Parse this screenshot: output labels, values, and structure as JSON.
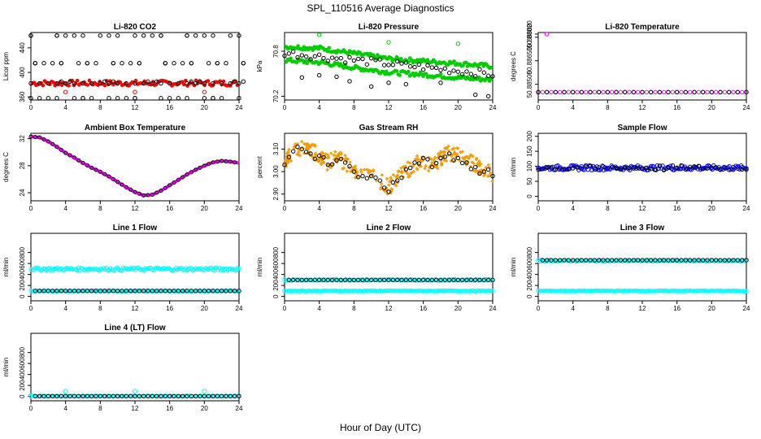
{
  "figure": {
    "main_title": "SPL_110516  Average Diagnostics",
    "xlabel": "Hour of Day (UTC)"
  },
  "colors": {
    "co2": "#ff0000",
    "pressure": "#00cc00",
    "temperature": "#ff00ff",
    "box_temp": "#ff00ff",
    "rh": "#ffa500",
    "sample_flow": "#0000ff",
    "line_flow": "#00ffff",
    "average_marker": "#000000"
  },
  "chart_data": [
    {
      "id": "co2",
      "type": "scatter",
      "title": "Li-820 CO2",
      "ylabel": "Licor ppm",
      "xlim": [
        0,
        24
      ],
      "ylim": [
        355,
        465
      ],
      "xticks": [
        "0",
        "4",
        "8",
        "12",
        "16",
        "20",
        "24"
      ],
      "yticks": [
        "360",
        "400",
        "440"
      ],
      "series": [
        {
          "name": "raw",
          "color": "red",
          "band_low": [
            378,
            378,
            379,
            379,
            378,
            378
          ],
          "band_high": [
            385,
            386,
            386,
            387,
            386,
            385
          ],
          "outliers": [
            [
              4,
              368
            ],
            [
              12,
              368
            ],
            [
              20,
              368
            ]
          ]
        },
        {
          "name": "hourly average",
          "color": "black",
          "x": [
            0,
            1,
            2,
            3,
            4,
            5,
            6,
            7,
            8,
            9,
            10,
            11,
            12,
            13,
            14,
            15,
            16,
            17,
            18,
            19,
            20,
            21,
            22,
            23,
            24
          ],
          "levels": [
            [
              0.5,
              358
            ],
            [
              1.5,
              385
            ],
            [
              2.5,
              460
            ],
            [
              5,
              415
            ],
            [
              7,
              358
            ],
            [
              9,
              415
            ],
            [
              11,
              460
            ],
            [
              13,
              385
            ],
            [
              17,
              358
            ],
            [
              21,
              415
            ],
            [
              23,
              460
            ]
          ]
        }
      ]
    },
    {
      "id": "pressure",
      "type": "scatter",
      "title": "Li-820 Pressure",
      "ylabel": "kPa",
      "xlim": [
        0,
        24
      ],
      "ylim": [
        70.15,
        71.05
      ],
      "xticks": [
        "0",
        "4",
        "8",
        "12",
        "16",
        "20",
        "24"
      ],
      "yticks": [
        "70.2",
        "70.8"
      ],
      "series": [
        {
          "name": "raw upper",
          "color": "green",
          "x": [
            0,
            4,
            8,
            12,
            16,
            20,
            24
          ],
          "y": [
            70.86,
            70.84,
            70.77,
            70.7,
            70.67,
            70.64,
            70.6
          ]
        },
        {
          "name": "raw lower",
          "color": "green",
          "x": [
            0,
            4,
            8,
            12,
            16,
            20,
            24
          ],
          "y": [
            70.68,
            70.65,
            70.58,
            70.52,
            70.49,
            70.45,
            70.42
          ]
        },
        {
          "name": "hourly average",
          "color": "black",
          "x": [
            0,
            2,
            4,
            6,
            8,
            10,
            12,
            14,
            16,
            18,
            20,
            22,
            24
          ],
          "y": [
            70.72,
            70.78,
            70.82,
            70.7,
            70.55,
            70.62,
            70.6,
            70.55,
            70.58,
            70.52,
            70.55,
            70.5,
            70.46
          ]
        }
      ]
    },
    {
      "id": "li820_temp",
      "type": "scatter",
      "title": "Li-820 Temperature",
      "ylabel": "degrees C",
      "xlim": [
        0,
        24
      ],
      "ylim": [
        50.884,
        50.8883
      ],
      "xticks": [
        "0",
        "4",
        "8",
        "12",
        "16",
        "20",
        "24"
      ],
      "yticks": [
        "50.88500",
        "50.88650",
        "50.88800",
        "50.88820"
      ],
      "series": [
        {
          "name": "raw",
          "color": "magenta",
          "x": [
            0,
            24
          ],
          "y": [
            50.8845,
            50.8845
          ],
          "outliers": [
            [
              1,
              50.8882
            ]
          ]
        },
        {
          "name": "hourly average",
          "color": "black",
          "x": [
            0,
            1,
            2,
            3,
            4,
            5,
            6,
            7,
            8,
            9,
            10,
            11,
            12,
            13,
            14,
            15,
            16,
            17,
            18,
            19,
            20,
            21,
            22,
            23,
            24
          ],
          "y": "constant 50.8845"
        }
      ]
    },
    {
      "id": "box_temp",
      "type": "line",
      "title": "Ambient Box Temperature",
      "ylabel": "degrees C",
      "xlim": [
        0,
        24
      ],
      "ylim": [
        22.8,
        32.8
      ],
      "xticks": [
        "0",
        "4",
        "8",
        "12",
        "16",
        "20",
        "24"
      ],
      "yticks": [
        "24",
        "28",
        "32"
      ],
      "series": [
        {
          "name": "raw",
          "color": "magenta",
          "x": [
            0,
            1,
            2,
            3,
            4,
            5,
            6,
            7,
            8,
            9,
            10,
            11,
            12,
            13,
            14,
            15,
            16,
            17,
            18,
            19,
            20,
            21,
            22,
            23,
            24
          ],
          "y": [
            32.3,
            32.2,
            31.6,
            30.8,
            29.9,
            29.2,
            28.4,
            27.7,
            27.1,
            26.4,
            25.6,
            24.8,
            24.1,
            23.6,
            23.7,
            24.3,
            25.1,
            25.9,
            26.7,
            27.4,
            28.0,
            28.5,
            28.7,
            28.6,
            28.4
          ]
        }
      ]
    },
    {
      "id": "rh",
      "type": "scatter",
      "title": "Gas Stream RH",
      "ylabel": "percent",
      "xlim": [
        0,
        24
      ],
      "ylim": [
        2.87,
        3.17
      ],
      "xticks": [
        "0",
        "4",
        "8",
        "12",
        "16",
        "20",
        "24"
      ],
      "yticks": [
        "2.90",
        "3.00",
        "3.10"
      ],
      "series": [
        {
          "name": "raw",
          "color": "orange",
          "x": [
            0,
            1,
            2,
            3,
            4,
            5,
            6,
            7,
            8,
            9,
            10,
            11,
            12,
            13,
            14,
            15,
            16,
            17,
            18,
            19,
            20,
            21,
            22,
            23,
            24
          ],
          "y": [
            3.05,
            3.09,
            3.11,
            3.1,
            3.07,
            3.04,
            3.06,
            3.04,
            3.0,
            2.99,
            2.98,
            2.96,
            2.93,
            2.97,
            3.0,
            3.03,
            3.05,
            3.02,
            3.06,
            3.08,
            3.07,
            3.05,
            3.03,
            3.01,
            2.99
          ]
        },
        {
          "name": "hourly average",
          "color": "black",
          "x": [
            0,
            1,
            2,
            3,
            4,
            5,
            6,
            7,
            8,
            9,
            10,
            11,
            12,
            13,
            14,
            15,
            16,
            17,
            18,
            19,
            20,
            21,
            22,
            23,
            24
          ],
          "y": [
            3.03,
            3.09,
            3.1,
            3.08,
            3.07,
            3.03,
            3.05,
            3.04,
            3.0,
            2.98,
            2.98,
            2.96,
            2.91,
            2.96,
            3.01,
            3.04,
            3.06,
            3.02,
            3.06,
            3.08,
            3.06,
            3.04,
            3.02,
            3.0,
            2.98
          ]
        }
      ]
    },
    {
      "id": "sample_flow",
      "type": "scatter",
      "title": "Sample Flow",
      "ylabel": "ml/min",
      "xlim": [
        0,
        24
      ],
      "ylim": [
        -15,
        210
      ],
      "xticks": [
        "0",
        "4",
        "8",
        "12",
        "16",
        "20",
        "24"
      ],
      "yticks": [
        "0",
        "50",
        "100",
        "150",
        "200"
      ],
      "series": [
        {
          "name": "raw",
          "color": "blue",
          "x": [
            0,
            24
          ],
          "y": [
            95,
            95
          ],
          "spread": 8
        },
        {
          "name": "hourly average",
          "color": "black",
          "x": [
            0,
            1,
            2,
            3,
            4,
            5,
            6,
            7,
            8,
            9,
            10,
            11,
            12,
            13,
            14,
            15,
            16,
            17,
            18,
            19,
            20,
            21,
            22,
            23,
            24
          ],
          "y": "approx 95"
        }
      ]
    },
    {
      "id": "line1_flow",
      "type": "scatter",
      "title": "Line 1 Flow",
      "ylabel": "ml/min",
      "xlim": [
        0,
        24
      ],
      "ylim": [
        -80,
        1150
      ],
      "xticks": [
        "0",
        "4",
        "8",
        "12",
        "16",
        "20",
        "24"
      ],
      "yticks": [
        "0",
        "200",
        "400",
        "600",
        "800"
      ],
      "series": [
        {
          "name": "raw high",
          "color": "cyan",
          "x": [
            0,
            24
          ],
          "y": [
            500,
            500
          ],
          "spread": 25
        },
        {
          "name": "raw low",
          "color": "cyan",
          "x": [
            0,
            24
          ],
          "y": [
            100,
            100
          ],
          "spread": 6
        },
        {
          "name": "hourly average",
          "color": "black",
          "x": [
            0,
            1,
            2,
            3,
            4,
            5,
            6,
            7,
            8,
            9,
            10,
            11,
            12,
            13,
            14,
            15,
            16,
            17,
            18,
            19,
            20,
            21,
            22,
            23,
            24
          ],
          "y": "constant 100"
        }
      ]
    },
    {
      "id": "line2_flow",
      "type": "scatter",
      "title": "Line 2 Flow",
      "ylabel": "ml/min",
      "xlim": [
        0,
        24
      ],
      "ylim": [
        -80,
        1150
      ],
      "xticks": [
        "0",
        "4",
        "8",
        "12",
        "16",
        "20",
        "24"
      ],
      "yticks": [
        "0",
        "200",
        "400",
        "600",
        "800"
      ],
      "series": [
        {
          "name": "raw high",
          "color": "cyan",
          "x": [
            0,
            24
          ],
          "y": [
            300,
            300
          ],
          "spread": 12
        },
        {
          "name": "raw low",
          "color": "cyan",
          "x": [
            0,
            24
          ],
          "y": [
            100,
            100
          ],
          "spread": 6
        },
        {
          "name": "hourly average",
          "color": "black",
          "x": [
            0,
            1,
            2,
            3,
            4,
            5,
            6,
            7,
            8,
            9,
            10,
            11,
            12,
            13,
            14,
            15,
            16,
            17,
            18,
            19,
            20,
            21,
            22,
            23,
            24
          ],
          "y": "constant 300"
        }
      ]
    },
    {
      "id": "line3_flow",
      "type": "scatter",
      "title": "Line 3 Flow",
      "ylabel": "ml/min",
      "xlim": [
        0,
        24
      ],
      "ylim": [
        -80,
        1150
      ],
      "xticks": [
        "0",
        "4",
        "8",
        "12",
        "16",
        "20",
        "24"
      ],
      "yticks": [
        "0",
        "200",
        "400",
        "600",
        "800"
      ],
      "series": [
        {
          "name": "raw high",
          "color": "cyan",
          "x": [
            0,
            24
          ],
          "y": [
            650,
            650
          ],
          "spread": 15
        },
        {
          "name": "raw low",
          "color": "cyan",
          "x": [
            0,
            24
          ],
          "y": [
            100,
            100
          ],
          "spread": 6
        },
        {
          "name": "hourly average",
          "color": "black",
          "x": [
            0,
            1,
            2,
            3,
            4,
            5,
            6,
            7,
            8,
            9,
            10,
            11,
            12,
            13,
            14,
            15,
            16,
            17,
            18,
            19,
            20,
            21,
            22,
            23,
            24
          ],
          "y": "constant 660"
        }
      ]
    },
    {
      "id": "line4_flow",
      "type": "scatter",
      "title": "Line 4 (LT) Flow",
      "ylabel": "ml/min",
      "xlim": [
        0,
        24
      ],
      "ylim": [
        -80,
        1150
      ],
      "xticks": [
        "0",
        "4",
        "8",
        "12",
        "16",
        "20",
        "24"
      ],
      "yticks": [
        "0",
        "200",
        "400",
        "600",
        "800"
      ],
      "series": [
        {
          "name": "raw",
          "color": "cyan",
          "x": [
            0,
            24
          ],
          "y": [
            5,
            5
          ],
          "outliers": [
            [
              0,
              10
            ],
            [
              4,
              90
            ],
            [
              12,
              90
            ],
            [
              20,
              90
            ]
          ]
        },
        {
          "name": "hourly average",
          "color": "black",
          "x": [
            0,
            1,
            2,
            3,
            4,
            5,
            6,
            7,
            8,
            9,
            10,
            11,
            12,
            13,
            14,
            15,
            16,
            17,
            18,
            19,
            20,
            21,
            22,
            23,
            24
          ],
          "y": "constant 5"
        }
      ]
    }
  ]
}
